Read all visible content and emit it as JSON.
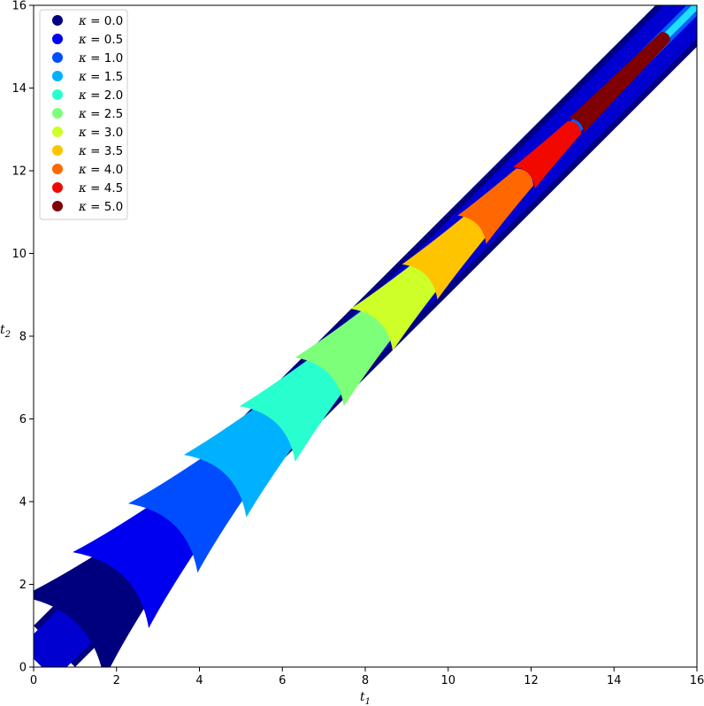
{
  "chart_data": {
    "type": "area",
    "title": "",
    "xlabel": "t",
    "xlabel_sub": "1",
    "ylabel": "t",
    "ylabel_sub": "2",
    "xlim": [
      0,
      16
    ],
    "ylim": [
      0,
      16
    ],
    "xticks": [
      "0",
      "2",
      "4",
      "6",
      "8",
      "10",
      "12",
      "14",
      "16"
    ],
    "yticks": [
      "0",
      "2",
      "4",
      "6",
      "8",
      "10",
      "12",
      "14",
      "16"
    ],
    "grid": false,
    "legend_position": "top-left",
    "band": {
      "description_free": true,
      "lower_intercept": -1,
      "upper_intercept": 1
    },
    "series": [
      {
        "name": "κ = 0.0",
        "kappa_label": "κ",
        "value_label": " = 0.0",
        "color": "#00007f",
        "x_start": 0.0,
        "x_end": 2.2
      },
      {
        "name": "κ = 0.5",
        "kappa_label": "κ",
        "value_label": " = 0.5",
        "color": "#0000f1",
        "x_start": 1.2,
        "x_end": 3.4
      },
      {
        "name": "κ = 1.0",
        "kappa_label": "κ",
        "value_label": " = 1.0",
        "color": "#004dff",
        "x_start": 2.5,
        "x_end": 4.6
      },
      {
        "name": "κ = 1.5",
        "kappa_label": "κ",
        "value_label": " = 1.5",
        "color": "#00b1ff",
        "x_start": 3.8,
        "x_end": 5.9
      },
      {
        "name": "κ = 2.0",
        "kappa_label": "κ",
        "value_label": " = 2.0",
        "color": "#29ffce",
        "x_start": 5.1,
        "x_end": 7.1
      },
      {
        "name": "κ = 2.5",
        "kappa_label": "κ",
        "value_label": " = 2.5",
        "color": "#7dff7a",
        "x_start": 6.4,
        "x_end": 8.3
      },
      {
        "name": "κ = 3.0",
        "kappa_label": "κ",
        "value_label": " = 3.0",
        "color": "#ceff29",
        "x_start": 7.7,
        "x_end": 9.5
      },
      {
        "name": "κ = 3.5",
        "kappa_label": "κ",
        "value_label": " = 3.5",
        "color": "#ffc400",
        "x_start": 8.9,
        "x_end": 10.7
      },
      {
        "name": "κ = 4.0",
        "kappa_label": "κ",
        "value_label": " = 4.0",
        "color": "#ff6800",
        "x_start": 10.2,
        "x_end": 11.9
      },
      {
        "name": "κ = 4.5",
        "kappa_label": "κ",
        "value_label": " = 4.5",
        "color": "#f10800",
        "x_start": 11.5,
        "x_end": 13.1
      },
      {
        "name": "κ = 5.0",
        "kappa_label": "κ",
        "value_label": " = 5.0",
        "color": "#7f0000",
        "x_start": 12.8,
        "x_end": 15.3
      }
    ]
  }
}
